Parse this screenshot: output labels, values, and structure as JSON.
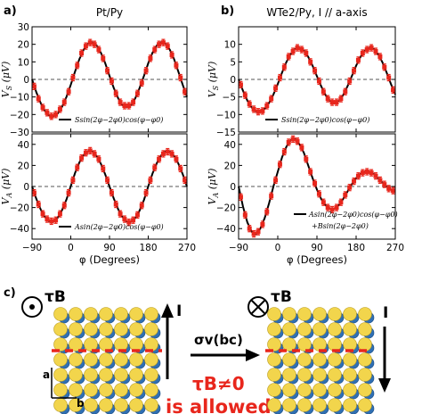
{
  "panel_labels": {
    "a": "a)",
    "b": "b)",
    "c": "c)"
  },
  "colors": {
    "fit": "#000000",
    "data": "#e8261c",
    "dashed": "#555555",
    "atom_gold": "#f2d54c",
    "atom_blue": "#2f6fb3",
    "arrow_red": "#e8261c"
  },
  "chart_data": [
    {
      "id": "a-top",
      "type": "line",
      "title": "Pt/Py",
      "xlabel": "",
      "ylabel": "V_S (μV)",
      "xlim": [
        -90,
        270
      ],
      "ylim": [
        -30,
        30
      ],
      "yticks": [
        -30,
        -20,
        -10,
        0,
        10,
        20,
        30
      ],
      "xticks": [
        -90,
        0,
        90,
        180,
        270
      ],
      "show_xticklabels": false,
      "legend": "Ssin(2φ−2φ0)cos(φ−φ0)",
      "legend_loc": "lower-center",
      "fit_series": {
        "name": "Ssin(2φ−2φ0)cos(φ−φ0)",
        "x": [
          -90,
          -80,
          -70,
          -60,
          -50,
          -40,
          -30,
          -20,
          -10,
          0,
          10,
          20,
          30,
          40,
          50,
          60,
          70,
          80,
          90,
          100,
          110,
          120,
          130,
          140,
          150,
          160,
          170,
          180,
          190,
          200,
          210,
          220,
          230,
          240,
          250,
          260,
          270
        ],
        "y": [
          0,
          -7.3,
          -13.5,
          -18,
          -20.6,
          -21,
          -19.3,
          -15.5,
          -9.9,
          -3,
          4.5,
          11.6,
          17,
          20.3,
          21.1,
          19.4,
          15.2,
          9.2,
          2,
          -4.9,
          -10.7,
          -14.6,
          -15.9,
          -14.6,
          -10.7,
          -4.9,
          2,
          9.2,
          15.2,
          19.4,
          21.1,
          20.3,
          17,
          11.6,
          4.5,
          -3,
          -9.9
        ]
      },
      "data_series": {
        "x": [
          -85,
          -75,
          -65,
          -55,
          -45,
          -35,
          -25,
          -15,
          -5,
          5,
          15,
          25,
          35,
          45,
          55,
          65,
          75,
          85,
          95,
          105,
          115,
          125,
          135,
          145,
          155,
          165,
          175,
          185,
          195,
          205,
          215,
          225,
          235,
          245,
          255,
          265
        ],
        "y": [
          -4,
          -11,
          -16,
          -19,
          -21,
          -20,
          -17,
          -13,
          -7,
          1,
          8,
          15,
          19,
          21,
          20,
          17,
          12,
          5,
          -1,
          -8,
          -13,
          -15,
          -15,
          -13,
          -8,
          -2,
          5,
          12,
          17,
          20,
          21,
          19,
          14,
          8,
          1,
          -7
        ]
      }
    },
    {
      "id": "a-bottom",
      "type": "line",
      "title": "",
      "xlabel": "φ (Degrees)",
      "ylabel": "V_A (μV)",
      "xlim": [
        -90,
        270
      ],
      "ylim": [
        -50,
        50
      ],
      "yticks": [
        -40,
        -20,
        0,
        20,
        40
      ],
      "xticks": [
        -90,
        0,
        90,
        180,
        270
      ],
      "show_xticklabels": true,
      "legend": "Asin(2φ−2φ0)cos(φ−φ0)",
      "legend_loc": "lower-center",
      "fit_series": {
        "name": "Asin(2φ−2φ0)cos(φ−φ0)",
        "x": [
          -90,
          -80,
          -70,
          -60,
          -50,
          -40,
          -30,
          -20,
          -10,
          0,
          10,
          20,
          30,
          40,
          50,
          60,
          70,
          80,
          90,
          100,
          110,
          120,
          130,
          140,
          150,
          160,
          170,
          180,
          190,
          200,
          210,
          220,
          230,
          240,
          250,
          260,
          270
        ],
        "y": [
          0,
          -11.8,
          -21.8,
          -29.1,
          -33,
          -33.2,
          -29.5,
          -22.3,
          -12.3,
          0.3,
          12.8,
          22.9,
          30,
          33.5,
          33.2,
          29,
          21.6,
          11.4,
          0,
          -11.4,
          -21.6,
          -29,
          -33.2,
          -33.5,
          -30,
          -22.9,
          -12.8,
          0,
          12.3,
          22.3,
          29.5,
          33.2,
          33,
          29.1,
          21.8,
          11.8,
          0
        ]
      },
      "data_series": {
        "x": [
          -85,
          -75,
          -65,
          -55,
          -45,
          -35,
          -25,
          -15,
          -5,
          5,
          15,
          25,
          35,
          45,
          55,
          65,
          75,
          85,
          95,
          105,
          115,
          125,
          135,
          145,
          155,
          165,
          175,
          185,
          195,
          205,
          215,
          225,
          235,
          245,
          255,
          265
        ],
        "y": [
          -6,
          -17,
          -26,
          -31,
          -33,
          -32,
          -26,
          -18,
          -6,
          6,
          18,
          27,
          32,
          34,
          31,
          26,
          17,
          6,
          -6,
          -17,
          -26,
          -31,
          -34,
          -32,
          -27,
          -18,
          -6,
          6,
          18,
          26,
          31,
          33,
          31,
          26,
          17,
          6
        ]
      }
    },
    {
      "id": "b-top",
      "type": "line",
      "title": "WTe2/Py, I // a-axis",
      "xlabel": "",
      "ylabel": "V_S (μV)",
      "xlim": [
        -90,
        270
      ],
      "ylim": [
        -15,
        15
      ],
      "yticks": [
        -15,
        -10,
        -5,
        0,
        5,
        10
      ],
      "xticks": [
        -90,
        0,
        90,
        180,
        270
      ],
      "show_xticklabels": false,
      "legend": "Ssin(2φ−2φ0)cos(φ−φ0)",
      "legend_loc": "lower-center",
      "fit_series": {
        "name": "Ssin(2φ−2φ0)cos(φ−φ0)",
        "x": [
          -90,
          -80,
          -70,
          -60,
          -50,
          -40,
          -30,
          -20,
          -10,
          0,
          10,
          20,
          30,
          40,
          50,
          60,
          70,
          80,
          90,
          100,
          110,
          120,
          130,
          140,
          150,
          160,
          170,
          180,
          190,
          200,
          210,
          220,
          230,
          240,
          250,
          260,
          270
        ],
        "y": [
          0,
          -3.2,
          -6,
          -8,
          -9.1,
          -9.2,
          -8.4,
          -6.7,
          -4.3,
          -1.3,
          2,
          5,
          7.3,
          8.7,
          9,
          8.2,
          6.4,
          3.9,
          0.9,
          -2,
          -4.5,
          -6.1,
          -6.6,
          -6.1,
          -4.5,
          -2,
          0.9,
          3.9,
          6.4,
          8.2,
          9,
          8.7,
          7.3,
          5,
          2,
          -1.3,
          -4.3
        ]
      },
      "data_series": {
        "x": [
          -85,
          -75,
          -65,
          -55,
          -45,
          -35,
          -25,
          -15,
          -5,
          5,
          15,
          25,
          35,
          45,
          55,
          65,
          75,
          85,
          95,
          105,
          115,
          125,
          135,
          145,
          155,
          165,
          175,
          185,
          195,
          205,
          215,
          225,
          235,
          245,
          255,
          265
        ],
        "y": [
          -1.5,
          -4.5,
          -7,
          -8.5,
          -9.2,
          -9,
          -7.5,
          -5.5,
          -2.5,
          0.5,
          3.5,
          6.5,
          8,
          9,
          8.5,
          7.5,
          5,
          2.5,
          -0.5,
          -3.5,
          -5.5,
          -6.5,
          -6.5,
          -5.5,
          -3.5,
          -0.5,
          2.5,
          5.5,
          7.5,
          8.5,
          9,
          8,
          6.5,
          3.5,
          0.5,
          -3
        ]
      }
    },
    {
      "id": "b-bottom",
      "type": "line",
      "title": "",
      "xlabel": "φ (Degrees)",
      "ylabel": "V_A (μV)",
      "xlim": [
        -90,
        270
      ],
      "ylim": [
        -50,
        50
      ],
      "yticks": [
        -40,
        -20,
        0,
        20,
        40
      ],
      "xticks": [
        -90,
        0,
        90,
        180,
        270
      ],
      "show_xticklabels": true,
      "legend": "Asin(2φ−2φ0)cos(φ−φ0)",
      "legend_line2": "+Bsin(2φ−2φ0)",
      "legend_loc": "lower-right",
      "fit_series": {
        "name": "Asin(2φ−2φ0)cos(φ−φ0)+Bsin(2φ−2φ0)",
        "x": [
          -90,
          -80,
          -70,
          -60,
          -50,
          -40,
          -30,
          -20,
          -10,
          0,
          10,
          20,
          30,
          40,
          50,
          60,
          70,
          80,
          90,
          100,
          110,
          120,
          130,
          140,
          150,
          160,
          170,
          180,
          190,
          200,
          210,
          220,
          230,
          240,
          250,
          260,
          270
        ],
        "y": [
          0,
          -19,
          -34,
          -43,
          -45,
          -40,
          -30,
          -16,
          0,
          14,
          28,
          38,
          44,
          45,
          40,
          32,
          20,
          8,
          -3,
          -12,
          -18,
          -21,
          -21,
          -18,
          -12,
          -5,
          2,
          8,
          12,
          14,
          14,
          12,
          8,
          4,
          0,
          -3,
          -4
        ]
      },
      "data_series": {
        "x": [
          -85,
          -75,
          -65,
          -55,
          -45,
          -35,
          -25,
          -15,
          -5,
          5,
          15,
          25,
          35,
          45,
          55,
          65,
          75,
          85,
          95,
          105,
          115,
          125,
          135,
          145,
          155,
          165,
          175,
          185,
          195,
          205,
          215,
          225,
          235,
          245,
          255,
          265
        ],
        "y": [
          -10,
          -27,
          -40,
          -45,
          -43,
          -36,
          -24,
          -9,
          6,
          21,
          33,
          42,
          45,
          43,
          37,
          26,
          14,
          3,
          -7,
          -15,
          -20,
          -22,
          -20,
          -15,
          -8,
          -1,
          5,
          10,
          13,
          14,
          13,
          10,
          6,
          2,
          -2,
          -4
        ]
      }
    }
  ],
  "panel_c": {
    "tau_left": "τB",
    "tau_right": "τB",
    "current_label_left": "I",
    "current_label_right": "I",
    "operation": "σv(bc)",
    "condition": "τB≠0",
    "result": "is allowed",
    "axis_a": "a",
    "axis_b": "b"
  }
}
